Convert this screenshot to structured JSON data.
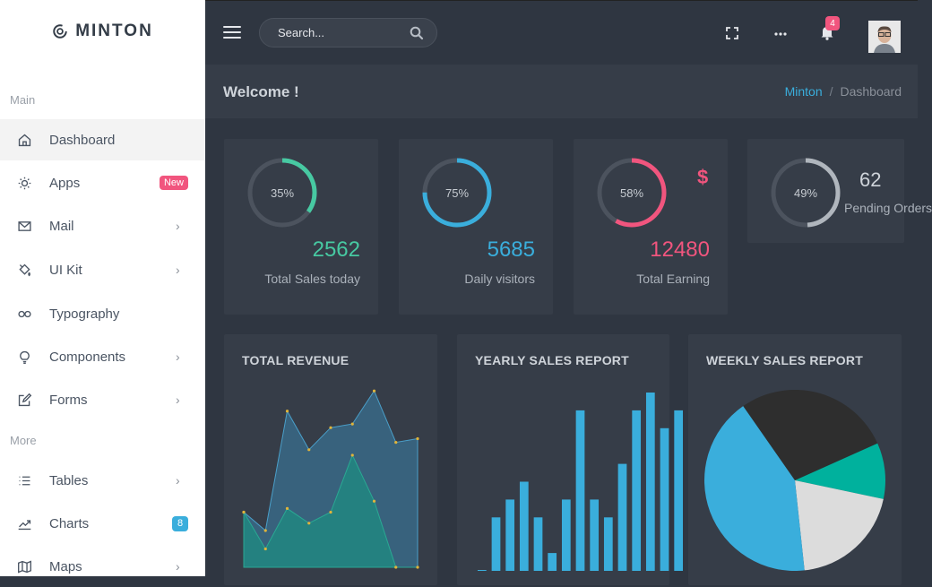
{
  "brand": {
    "name": "MINTON"
  },
  "sidebar": {
    "main_title": "Main",
    "more_title": "More",
    "items": [
      {
        "label": "Dashboard",
        "icon": "home-icon"
      },
      {
        "label": "Apps",
        "icon": "sun-icon",
        "badge": "New"
      },
      {
        "label": "Mail",
        "icon": "mail-icon"
      },
      {
        "label": "UI Kit",
        "icon": "paint-bucket-icon"
      },
      {
        "label": "Typography",
        "icon": "infinity-icon"
      },
      {
        "label": "Components",
        "icon": "lightbulb-icon"
      },
      {
        "label": "Forms",
        "icon": "edit-icon"
      },
      {
        "label": "Tables",
        "icon": "list-icon"
      },
      {
        "label": "Charts",
        "icon": "trending-icon",
        "badge": "8"
      },
      {
        "label": "Maps",
        "icon": "map-icon"
      }
    ]
  },
  "topbar": {
    "search_placeholder": "Search...",
    "notification_count": "4",
    "icons": [
      "menu-icon",
      "search-icon",
      "fullscreen-icon",
      "more-dots-icon",
      "bell-icon",
      "user-avatar"
    ]
  },
  "page": {
    "title": "Welcome !",
    "breadcrumb": {
      "home": "Minton",
      "separator": "/",
      "current": "Dashboard"
    }
  },
  "stats": [
    {
      "percent": "35%",
      "fraction": 0.35,
      "value": "2562",
      "label": "Total Sales today",
      "color": "#47c9a2"
    },
    {
      "percent": "75%",
      "fraction": 0.75,
      "value": "5685",
      "label": "Daily visitors",
      "color": "#3aaedc"
    },
    {
      "percent": "58%",
      "fraction": 0.58,
      "value": "12480",
      "label": "Total Earning",
      "color": "#f1557e",
      "currency": "$"
    },
    {
      "percent": "49%",
      "fraction": 0.49,
      "value": "62",
      "label": "Pending Orders",
      "color": "#b0b6bd"
    }
  ],
  "colors": {
    "accent": "#3aaedc",
    "pink": "#f1557e",
    "green": "#47c9a2",
    "dark_bg": "#2f3641",
    "card_bg": "#363d48"
  },
  "charts": {
    "revenue_title": "TOTAL REVENUE",
    "yearly_title": "YEARLY SALES REPORT",
    "weekly_title": "WEEKLY SALES REPORT"
  },
  "chart_data": [
    {
      "type": "area",
      "title": "TOTAL REVENUE",
      "x": [
        0,
        1,
        2,
        3,
        4,
        5,
        6,
        7,
        8
      ],
      "series": [
        {
          "values": [
            30,
            20,
            85,
            64,
            76,
            78,
            96,
            68,
            70
          ]
        },
        {
          "values": [
            30,
            10,
            32,
            24,
            30,
            61,
            36,
            0,
            0
          ]
        }
      ],
      "ylim": [
        0,
        100
      ]
    },
    {
      "type": "bar",
      "title": "YEARLY SALES REPORT",
      "values": [
        0,
        30,
        40,
        50,
        30,
        10,
        40,
        90,
        40,
        30,
        60,
        90,
        100,
        80,
        90
      ],
      "ylim": [
        0,
        100
      ]
    },
    {
      "type": "pie",
      "title": "WEEKLY SALES REPORT",
      "values": [
        28,
        10,
        20,
        42
      ],
      "colors": [
        "#2e2e2e",
        "#00b19d",
        "#dcdcdc",
        "#3aaedc"
      ]
    }
  ]
}
